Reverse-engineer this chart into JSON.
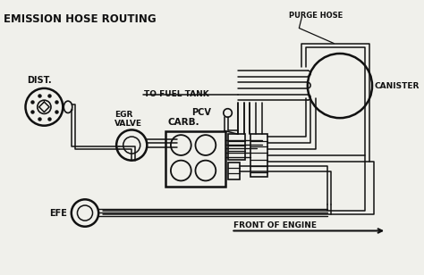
{
  "title": "EMISSION HOSE ROUTING",
  "bg_color": "#f0f0eb",
  "line_color": "#111111",
  "labels": {
    "title": "EMISSION HOSE ROUTING",
    "purge_hose": "PURGE HOSE",
    "to_fuel_tank": "TO FUEL TANK",
    "canister": "CANISTER",
    "pcv": "PCV",
    "carb": "CARB.",
    "dist": "DIST.",
    "egr_valve": "EGR\nVALVE",
    "efe": "EFE",
    "front_of_engine": "FRONT OF ENGINE"
  },
  "figsize": [
    4.74,
    3.08
  ],
  "dpi": 100
}
